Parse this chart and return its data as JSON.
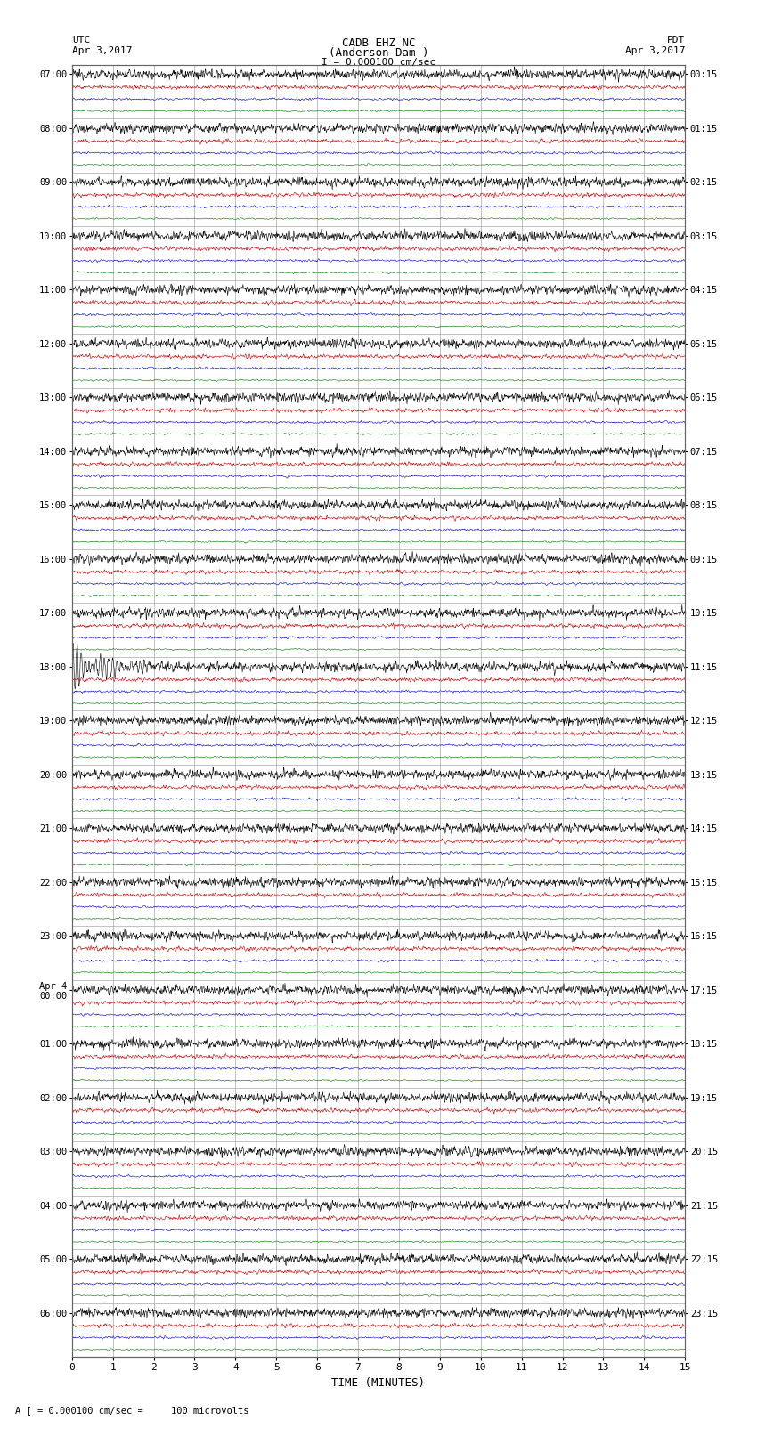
{
  "title_line1": "CADB EHZ NC",
  "title_line2": "(Anderson Dam )",
  "title_line3": "I = 0.000100 cm/sec",
  "left_label_top": "UTC",
  "left_label_date": "Apr 3,2017",
  "right_label_top": "PDT",
  "right_label_date": "Apr 3,2017",
  "bottom_label": "TIME (MINUTES)",
  "bottom_note": "A [ = 0.000100 cm/sec =     100 microvolts",
  "xlabel_ticks": [
    0,
    1,
    2,
    3,
    4,
    5,
    6,
    7,
    8,
    9,
    10,
    11,
    12,
    13,
    14,
    15
  ],
  "bg_color": "#ffffff",
  "trace_color_black": "#000000",
  "trace_color_red": "#cc0000",
  "trace_color_blue": "#0000cc",
  "trace_color_green": "#007700",
  "grid_color": "#aaaaaa",
  "utc_times": [
    "07:00",
    "08:00",
    "09:00",
    "10:00",
    "11:00",
    "12:00",
    "13:00",
    "14:00",
    "15:00",
    "16:00",
    "17:00",
    "18:00",
    "19:00",
    "20:00",
    "21:00",
    "22:00",
    "23:00",
    "Apr 4\n00:00",
    "01:00",
    "02:00",
    "03:00",
    "04:00",
    "05:00",
    "06:00"
  ],
  "pdt_times": [
    "00:15",
    "01:15",
    "02:15",
    "03:15",
    "04:15",
    "05:15",
    "06:15",
    "07:15",
    "08:15",
    "09:15",
    "10:15",
    "11:15",
    "12:15",
    "13:15",
    "14:15",
    "15:15",
    "16:15",
    "17:15",
    "18:15",
    "19:15",
    "20:15",
    "21:15",
    "22:15",
    "23:15"
  ],
  "n_rows": 24,
  "n_traces_per_row": 4,
  "minutes_per_row": 15,
  "noise_amp_black": 0.055,
  "noise_amp_red": 0.03,
  "noise_amp_blue": 0.02,
  "noise_amp_green": 0.015,
  "earthquake_row": 11,
  "eq_amp": 0.35,
  "figure_width": 8.5,
  "figure_height": 16.13,
  "dpi": 100
}
